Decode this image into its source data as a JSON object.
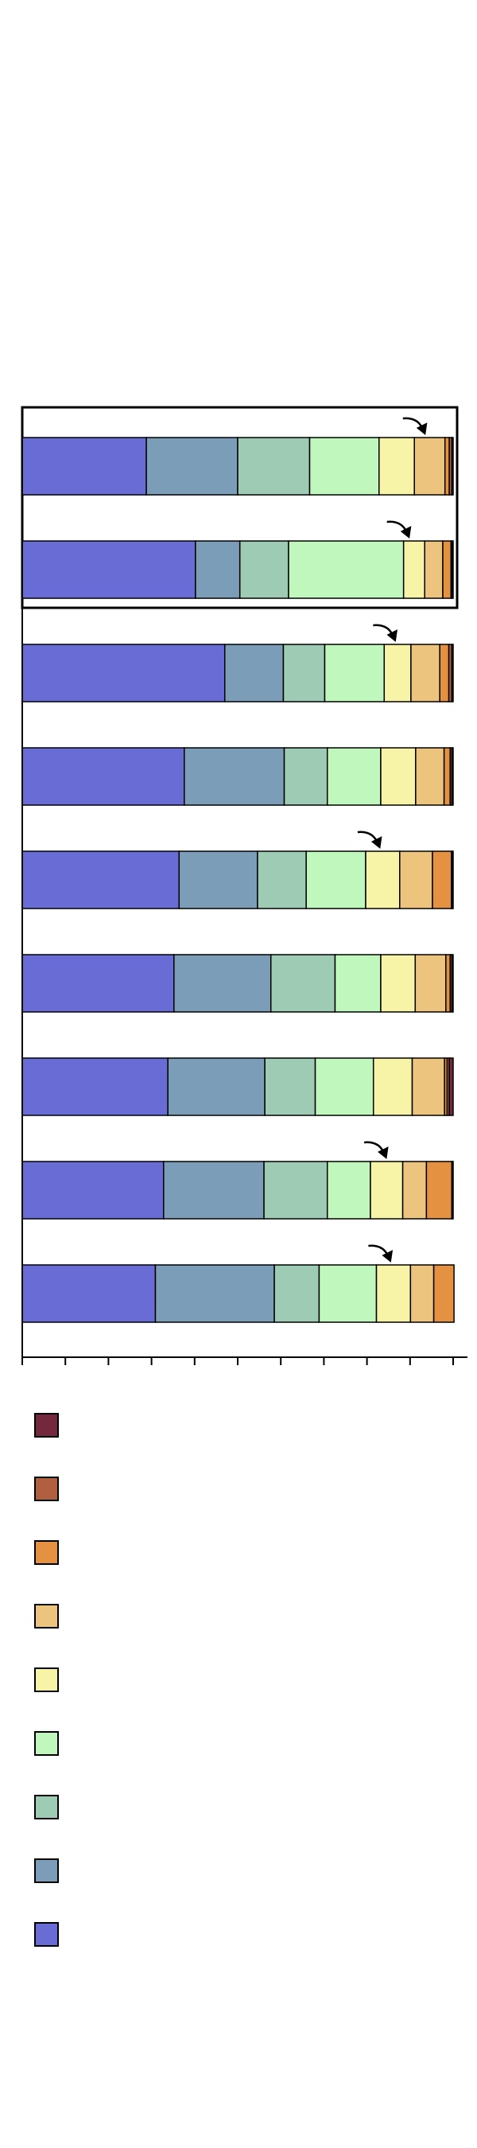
{
  "chart_data": {
    "type": "bar",
    "orientation": "horizontal",
    "stacked": true,
    "normalized": true,
    "title": "",
    "xlabel": "",
    "ylabel": "",
    "xlim": [
      0,
      1
    ],
    "x_tick_count": 10,
    "x_tick_labels": [],
    "grid": false,
    "legend_position": "bottom",
    "highlight_box_rows": [
      0,
      1
    ],
    "categories": [
      "",
      "",
      "",
      "",
      "",
      "",
      "",
      "",
      ""
    ],
    "series": [
      {
        "color": "#6a6cd6",
        "values": [
          0.288,
          0.402,
          0.47,
          0.376,
          0.364,
          0.352,
          0.338,
          0.328,
          0.309
        ]
      },
      {
        "color": "#7b9db7",
        "values": [
          0.212,
          0.103,
          0.136,
          0.232,
          0.182,
          0.225,
          0.225,
          0.233,
          0.276
        ]
      },
      {
        "color": "#9ecbb4",
        "values": [
          0.167,
          0.113,
          0.096,
          0.1,
          0.113,
          0.149,
          0.117,
          0.147,
          0.104
        ]
      },
      {
        "color": "#c0f7bc",
        "values": [
          0.161,
          0.267,
          0.138,
          0.124,
          0.138,
          0.106,
          0.135,
          0.1,
          0.133
        ]
      },
      {
        "color": "#f7f4a7",
        "values": [
          0.082,
          0.049,
          0.062,
          0.081,
          0.079,
          0.08,
          0.09,
          0.075,
          0.079
        ]
      },
      {
        "color": "#edc47e",
        "values": [
          0.071,
          0.042,
          0.067,
          0.066,
          0.076,
          0.071,
          0.075,
          0.055,
          0.054
        ]
      },
      {
        "color": "#e59142",
        "values": [
          0.01,
          0.019,
          0.021,
          0.014,
          0.044,
          0.01,
          0.006,
          0.059,
          0.047
        ]
      },
      {
        "color": "#b0603e",
        "values": [
          0.006,
          0.003,
          0.007,
          0.004,
          0.003,
          0.004,
          0.005,
          0.002,
          0.0
        ]
      },
      {
        "color": "#74283e",
        "values": [
          0.003,
          0.002,
          0.003,
          0.003,
          0.001,
          0.003,
          0.009,
          0.001,
          0.0
        ]
      }
    ],
    "annotation_arrows": [
      {
        "row": 0,
        "at": 0.935
      },
      {
        "row": 1,
        "at": 0.898
      },
      {
        "row": 2,
        "at": 0.866
      },
      {
        "row": 4,
        "at": 0.83
      },
      {
        "row": 7,
        "at": 0.845
      },
      {
        "row": 8,
        "at": 0.855
      }
    ],
    "legend": {
      "entries": [
        {
          "color": "#74283e",
          "label": ""
        },
        {
          "color": "#b0603e",
          "label": ""
        },
        {
          "color": "#e59142",
          "label": ""
        },
        {
          "color": "#edc47e",
          "label": ""
        },
        {
          "color": "#f7f4a7",
          "label": ""
        },
        {
          "color": "#c0f7bc",
          "label": ""
        },
        {
          "color": "#9ecbb4",
          "label": ""
        },
        {
          "color": "#7b9db7",
          "label": ""
        },
        {
          "color": "#6a6cd6",
          "label": ""
        }
      ]
    }
  }
}
